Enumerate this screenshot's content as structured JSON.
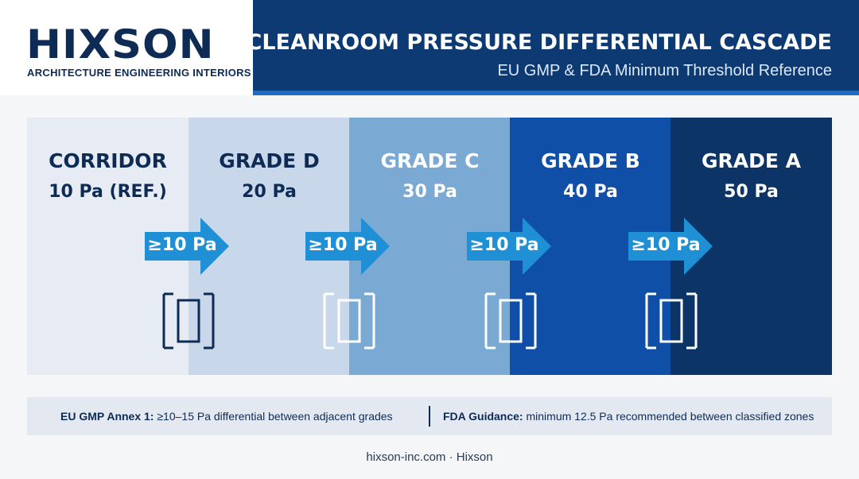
{
  "brand": {
    "logo_word": "HIXSON",
    "logo_tagline": "ARCHITECTURE ENGINEERING INTERIORS"
  },
  "header": {
    "title": "CLEANROOM PRESSURE DIFFERENTIAL CASCADE",
    "subtitle": "EU GMP & FDA Minimum Threshold Reference"
  },
  "colors": {
    "navy": "#0d3a73",
    "accent_blue": "#1f8fd6",
    "dark_text": "#0d2b55"
  },
  "zones": [
    {
      "name": "CORRIDOR",
      "pressure": "10 Pa (REF.)",
      "bg": "#e7ecf4",
      "text": "#0d2b55"
    },
    {
      "name": "GRADE D",
      "pressure": "20 Pa",
      "bg": "#c9d7ea",
      "text": "#0d2b55"
    },
    {
      "name": "GRADE C",
      "pressure": "30 Pa",
      "bg": "#7aa9d3",
      "text": "#ffffff"
    },
    {
      "name": "GRADE B",
      "pressure": "40 Pa",
      "bg": "#0f4fa8",
      "text": "#ffffff"
    },
    {
      "name": "GRADE A",
      "pressure": "50 Pa",
      "bg": "#0d3466",
      "text": "#ffffff"
    }
  ],
  "transitions": [
    {
      "label": "≥10 Pa",
      "icon": "door-icon"
    },
    {
      "label": "≥10 Pa",
      "icon": "door-icon"
    },
    {
      "label": "≥10 Pa",
      "icon": "door-icon"
    },
    {
      "label": "≥10 Pa",
      "icon": "door-icon"
    }
  ],
  "notes": {
    "eu_label": "EU GMP Annex 1:",
    "eu_text": "≥10–15 Pa differential between adjacent grades",
    "fda_label": "FDA Guidance:",
    "fda_text": "minimum 12.5 Pa recommended between classified zones"
  },
  "footer": {
    "text": "hixson-inc.com · Hixson"
  }
}
